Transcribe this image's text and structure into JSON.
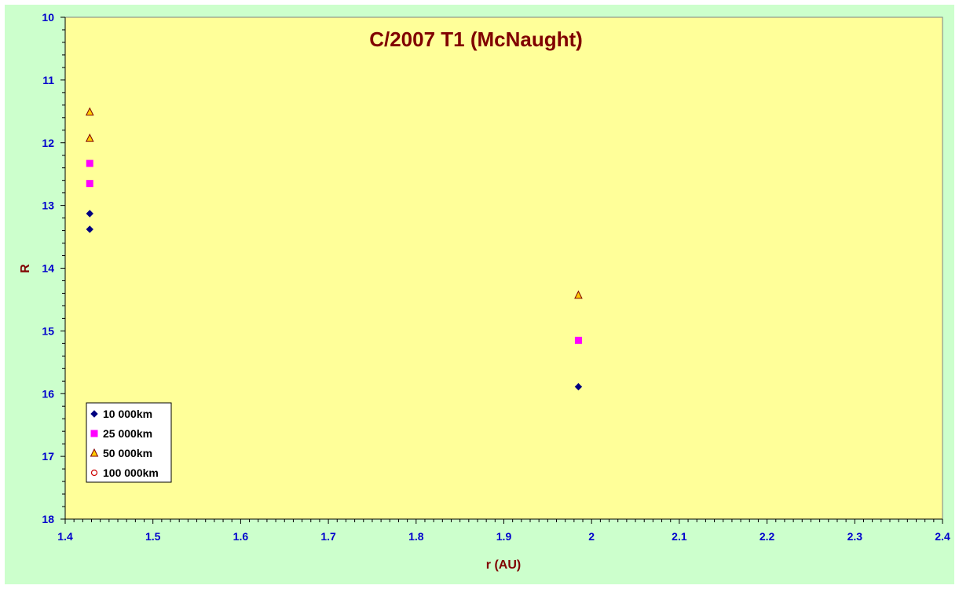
{
  "chart_data": {
    "type": "scatter",
    "title": "C/2007 T1 (McNaught)",
    "xlabel": "r (AU)",
    "ylabel": "R",
    "xlim": [
      1.4,
      2.4
    ],
    "ylim": [
      10,
      18
    ],
    "y_inverted": true,
    "x_ticks": [
      "1.4",
      "1.5",
      "1.6",
      "1.7",
      "1.8",
      "1.9",
      "2",
      "2.1",
      "2.2",
      "2.3",
      "2.4"
    ],
    "y_ticks": [
      "10",
      "11",
      "12",
      "13",
      "14",
      "15",
      "16",
      "17",
      "18"
    ],
    "grid": false,
    "legend_position": "bottom-left",
    "series": [
      {
        "name": "10 000km",
        "marker": "diamond",
        "color": "#000080",
        "points": [
          {
            "x": 1.428,
            "y": 13.13
          },
          {
            "x": 1.428,
            "y": 13.38
          },
          {
            "x": 1.985,
            "y": 15.89
          }
        ]
      },
      {
        "name": "25 000km",
        "marker": "square",
        "color": "#ff00ff",
        "points": [
          {
            "x": 1.428,
            "y": 12.33
          },
          {
            "x": 1.428,
            "y": 12.65
          },
          {
            "x": 1.985,
            "y": 15.15
          }
        ]
      },
      {
        "name": "50 000km",
        "marker": "triangle",
        "color": "#ffcc00",
        "stroke": "#800000",
        "points": [
          {
            "x": 1.428,
            "y": 11.51
          },
          {
            "x": 1.428,
            "y": 11.93
          },
          {
            "x": 1.985,
            "y": 14.43
          }
        ]
      },
      {
        "name": "100 000km",
        "marker": "circle",
        "color": "#ffffff",
        "stroke": "#cc0000",
        "points": []
      }
    ]
  },
  "colors": {
    "chart_background": "#ccffcc",
    "plot_background": "#ffff99",
    "title_color": "#800000",
    "tick_label_color": "#0000cc"
  }
}
